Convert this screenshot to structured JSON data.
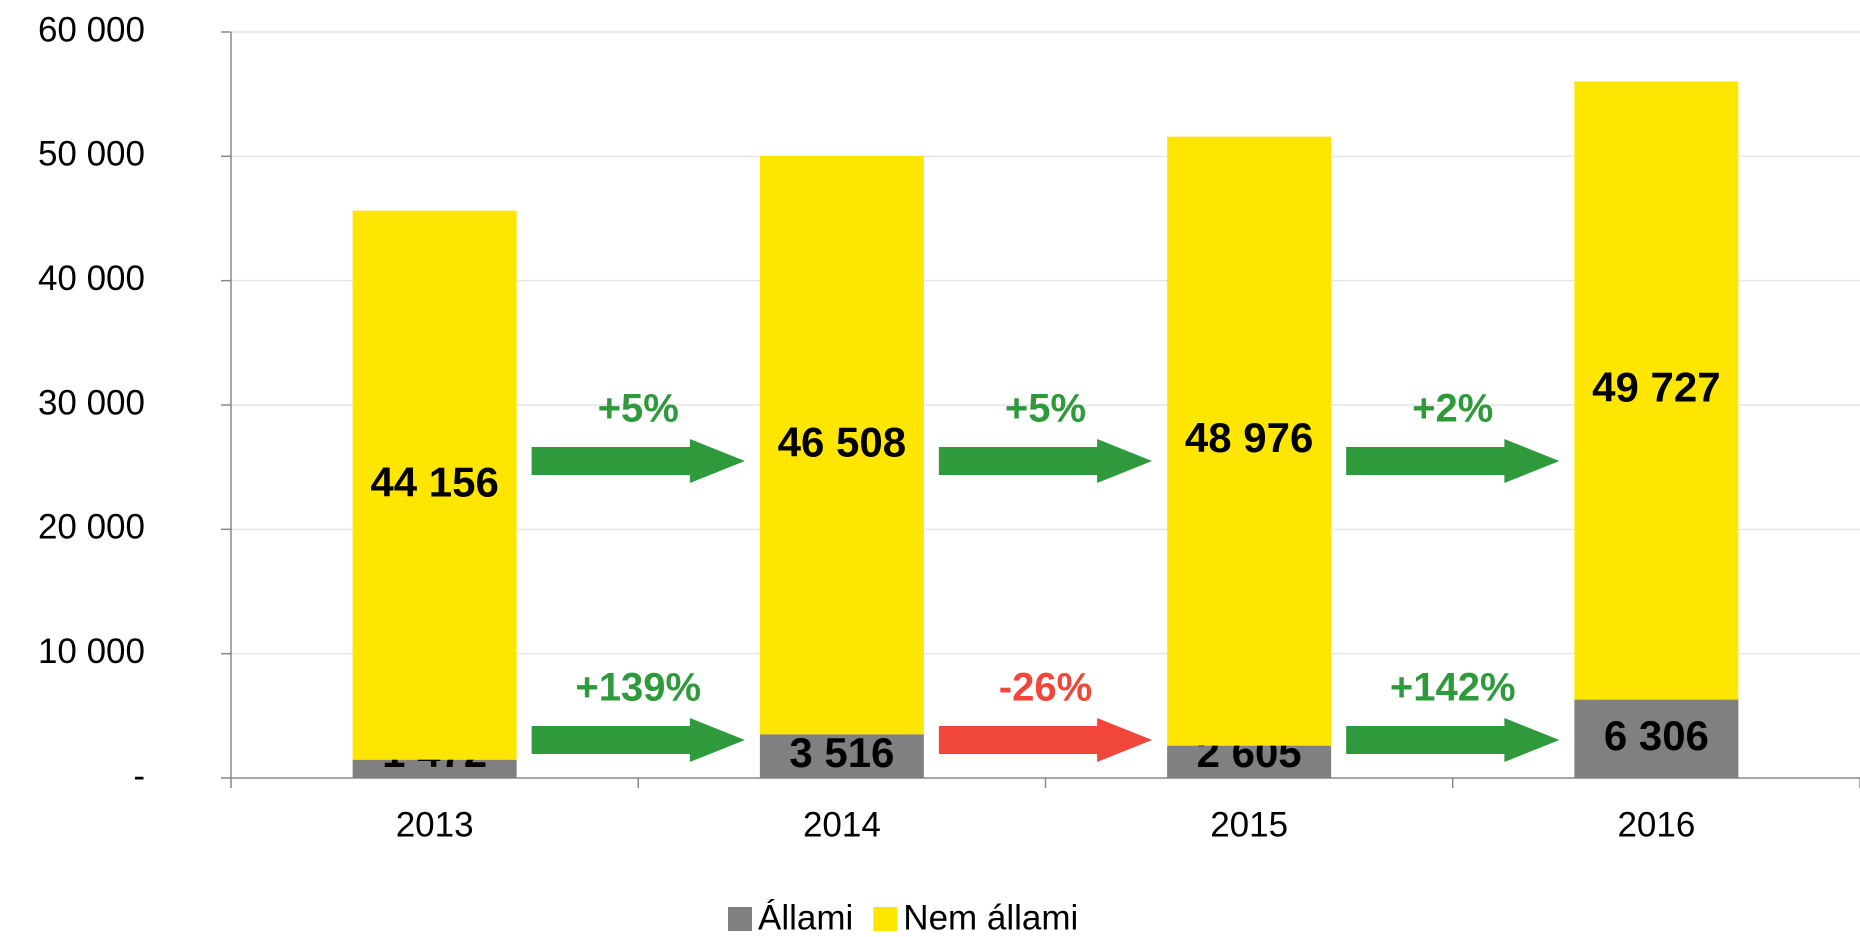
{
  "chart_data": {
    "type": "stacked_bar",
    "categories": [
      "2013",
      "2014",
      "2015",
      "2016"
    ],
    "series": [
      {
        "name": "Állami",
        "color": "#808080",
        "values": [
          1472,
          3516,
          2605,
          6306
        ],
        "value_labels": [
          "1 472",
          "3 516",
          "2 605",
          "6 306"
        ],
        "changes": [
          "+139%",
          "-26%",
          "+142%"
        ],
        "change_colors": [
          "#2e9a3c",
          "#f0473a",
          "#2e9a3c"
        ]
      },
      {
        "name": "Nem állami",
        "color": "#ffe600",
        "values": [
          44156,
          46508,
          48976,
          49727
        ],
        "value_labels": [
          "44 156",
          "46 508",
          "48 976",
          "49 727"
        ],
        "changes": [
          "+5%",
          "+5%",
          "+2%"
        ],
        "change_colors": [
          "#2e9a3c",
          "#2e9a3c",
          "#2e9a3c"
        ]
      }
    ],
    "ylim": [
      0,
      60000
    ],
    "yticks": [
      {
        "value": 0,
        "label": "-"
      },
      {
        "value": 10000,
        "label": "10 000"
      },
      {
        "value": 20000,
        "label": "20 000"
      },
      {
        "value": 30000,
        "label": "30 000"
      },
      {
        "value": 40000,
        "label": "40 000"
      },
      {
        "value": 50000,
        "label": "50 000"
      },
      {
        "value": 60000,
        "label": "60 000"
      }
    ],
    "grid": true,
    "legend": "bottom"
  }
}
